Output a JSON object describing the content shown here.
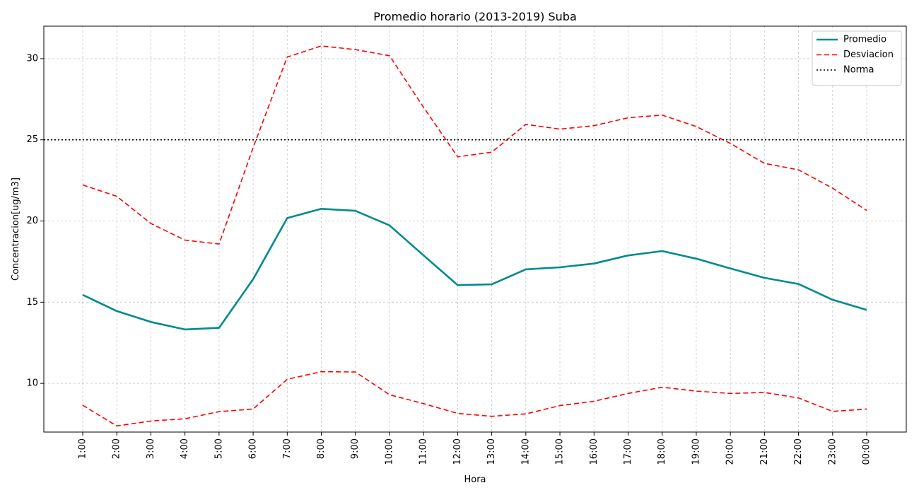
{
  "chart_data": {
    "type": "line",
    "title": "Promedio horario (2013-2019) Suba",
    "xlabel": "Hora",
    "ylabel": "Concentracion[ug/m3]",
    "categories": [
      "1:00",
      "2:00",
      "3:00",
      "4:00",
      "5:00",
      "6:00",
      "7:00",
      "8:00",
      "9:00",
      "10:00",
      "11:00",
      "12:00",
      "13:00",
      "14:00",
      "15:00",
      "16:00",
      "17:00",
      "18:00",
      "19:00",
      "20:00",
      "21:00",
      "22:00",
      "23:00",
      "00:00"
    ],
    "ylim": [
      7.0,
      32.0
    ],
    "yticks": [
      10,
      15,
      20,
      25,
      30
    ],
    "grid": true,
    "legend_position": "top-right",
    "series": [
      {
        "name": "Promedio",
        "style": "solid",
        "color": "#008b8b",
        "values": [
          15.45,
          14.45,
          13.78,
          13.32,
          13.42,
          16.42,
          20.18,
          20.75,
          20.63,
          19.73,
          17.88,
          16.05,
          16.1,
          17.02,
          17.15,
          17.38,
          17.88,
          18.15,
          17.68,
          17.08,
          16.5,
          16.12,
          15.15,
          14.52
        ]
      },
      {
        "name": "Desviacion",
        "style": "dashed",
        "color": "#ff0000",
        "values": [
          22.22,
          21.52,
          19.85,
          18.82,
          18.58,
          24.52,
          30.1,
          30.78,
          30.56,
          30.18,
          27.0,
          23.95,
          24.24,
          25.95,
          25.66,
          25.87,
          26.36,
          26.52,
          25.82,
          24.78,
          23.55,
          23.15,
          22.02,
          20.65
        ]
      },
      {
        "name": "",
        "style": "dashed",
        "color": "#ff0000",
        "values": [
          8.65,
          7.38,
          7.68,
          7.82,
          8.26,
          8.42,
          10.25,
          10.72,
          10.7,
          9.3,
          8.75,
          8.15,
          7.97,
          8.12,
          8.63,
          8.9,
          9.38,
          9.76,
          9.52,
          9.38,
          9.44,
          9.1,
          8.27,
          8.42
        ]
      },
      {
        "name": "Norma",
        "style": "dotted",
        "color": "#000000",
        "constant": 25
      }
    ]
  }
}
